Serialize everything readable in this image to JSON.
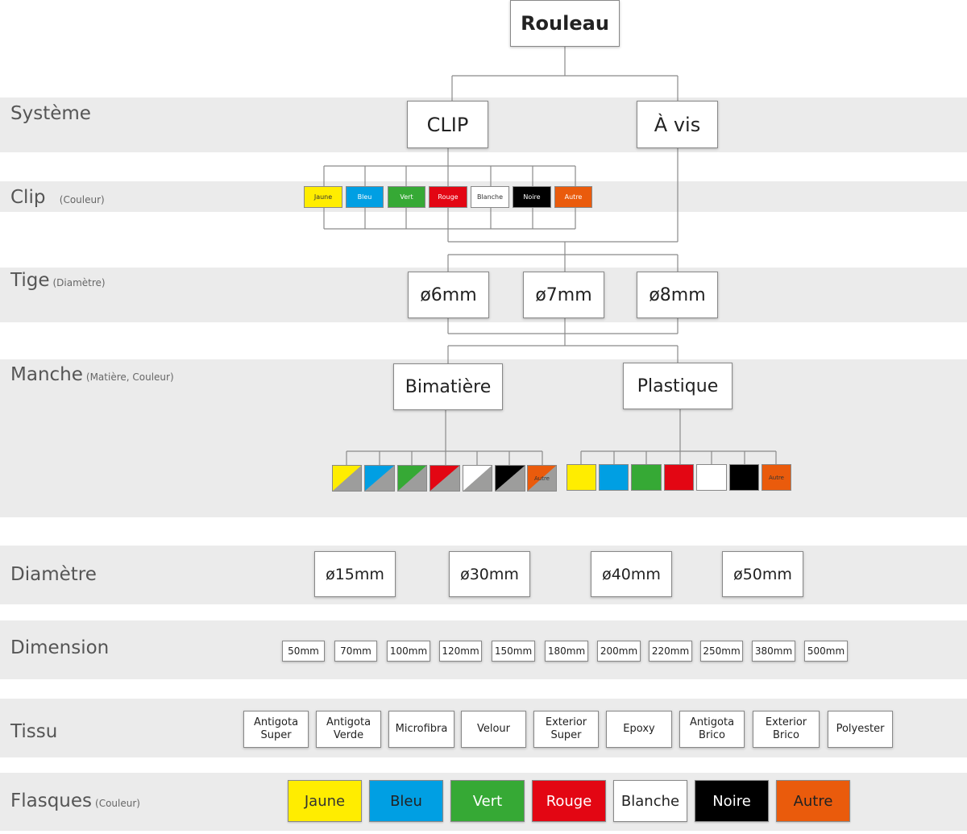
{
  "root": "Rouleau",
  "rows": {
    "systeme": {
      "label": "Système"
    },
    "clip": {
      "label": "Clip",
      "sub": "(Couleur)"
    },
    "tige": {
      "label": "Tige",
      "sub": "(Diamètre)"
    },
    "manche": {
      "label": "Manche",
      "sub": "(Matière, Couleur)"
    },
    "diametre": {
      "label": "Diamètre"
    },
    "dimension": {
      "label": "Dimension"
    },
    "tissu": {
      "label": "Tissu"
    },
    "flasques": {
      "label": "Flasques",
      "sub": "(Couleur)"
    }
  },
  "systeme": [
    "CLIP",
    "À vis"
  ],
  "clip_colors": [
    {
      "label": "Jaune",
      "color": "#ffed00",
      "text": "#333333"
    },
    {
      "label": "Bleu",
      "color": "#009fe3",
      "text": "#ffffff"
    },
    {
      "label": "Vert",
      "color": "#36a935",
      "text": "#ffffff"
    },
    {
      "label": "Rouge",
      "color": "#e30613",
      "text": "#ffffff"
    },
    {
      "label": "Blanche",
      "color": "#ffffff",
      "text": "#333333"
    },
    {
      "label": "Noire",
      "color": "#000000",
      "text": "#ffffff"
    },
    {
      "label": "Autre",
      "color": "#ea5b0c",
      "text": "#ffffff"
    }
  ],
  "tige": [
    "ø6mm",
    "ø7mm",
    "ø8mm"
  ],
  "manche": [
    "Bimatière",
    "Plastique"
  ],
  "bimatiere_colors": [
    "#ffed00",
    "#009fe3",
    "#36a935",
    "#e30613",
    "#ffffff",
    "#000000",
    "#ea5b0c"
  ],
  "bimatiere_secondary": "#9d9d9c",
  "bimatiere_other_label": "Autre",
  "plastique_colors": [
    "#ffed00",
    "#009fe3",
    "#36a935",
    "#e30613",
    "#ffffff",
    "#000000",
    "#ea5b0c"
  ],
  "plastique_other_label": "Autre",
  "diametre": [
    "ø15mm",
    "ø30mm",
    "ø40mm",
    "ø50mm"
  ],
  "dimension": [
    "50mm",
    "70mm",
    "100mm",
    "120mm",
    "150mm",
    "180mm",
    "200mm",
    "220mm",
    "250mm",
    "380mm",
    "500mm"
  ],
  "tissu": [
    [
      "Antigota",
      "Super"
    ],
    [
      "Antigota",
      "Verde"
    ],
    [
      "Microfibra"
    ],
    [
      "Velour"
    ],
    [
      "Exterior",
      "Super"
    ],
    [
      "Epoxy"
    ],
    [
      "Antigota",
      "Brico"
    ],
    [
      "Exterior",
      "Brico"
    ],
    [
      "Polyester"
    ]
  ],
  "flasques": [
    {
      "label": "Jaune",
      "color": "#ffed00",
      "text": "#333333"
    },
    {
      "label": "Bleu",
      "color": "#009fe3",
      "text": "#222222"
    },
    {
      "label": "Vert",
      "color": "#36a935",
      "text": "#ffffff"
    },
    {
      "label": "Rouge",
      "color": "#e30613",
      "text": "#ffffff"
    },
    {
      "label": "Blanche",
      "color": "#ffffff",
      "text": "#222222"
    },
    {
      "label": "Noire",
      "color": "#000000",
      "text": "#ffffff"
    },
    {
      "label": "Autre",
      "color": "#ea5b0c",
      "text": "#222222"
    }
  ]
}
